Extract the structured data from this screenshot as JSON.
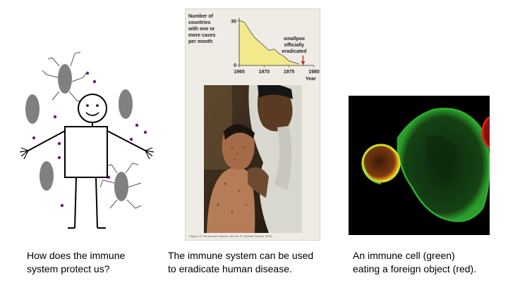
{
  "panels": [
    {
      "caption_lines": [
        "How does the immune",
        "system protect us?"
      ]
    },
    {
      "caption_lines": [
        "The immune system can be used",
        "to eradicate human disease."
      ]
    },
    {
      "caption_lines": [
        "An immune cell (green)",
        "eating a foreign object (red)."
      ]
    }
  ],
  "figure": {
    "credit": "Figure 1.1 The Immune System, 4th ed. (© Garland Science 2015)",
    "annotation_lines": [
      "smallpox",
      "officially",
      "eradicated"
    ]
  },
  "chart_data": {
    "type": "area",
    "ylabel_lines": [
      "Number of",
      "countries",
      "with one or",
      "more cases",
      "per month"
    ],
    "xlabel": "Year",
    "xlim": [
      1965,
      1980
    ],
    "ylim": [
      0,
      32
    ],
    "x_ticks": [
      "1965",
      "1970",
      "1975",
      "1980"
    ],
    "y_ticks": [
      "30",
      "0"
    ],
    "x": [
      1965,
      1966,
      1967,
      1968,
      1969,
      1970,
      1971,
      1972,
      1973,
      1974,
      1975,
      1976,
      1977
    ],
    "values": [
      30,
      29,
      24,
      19,
      16,
      13,
      10,
      11,
      8,
      6,
      3,
      2,
      1
    ],
    "annotation_x": 1977.8,
    "colors": {
      "fill": "#f2e98a",
      "line": "#6b6b6b",
      "arrow": "#c0392b"
    }
  }
}
